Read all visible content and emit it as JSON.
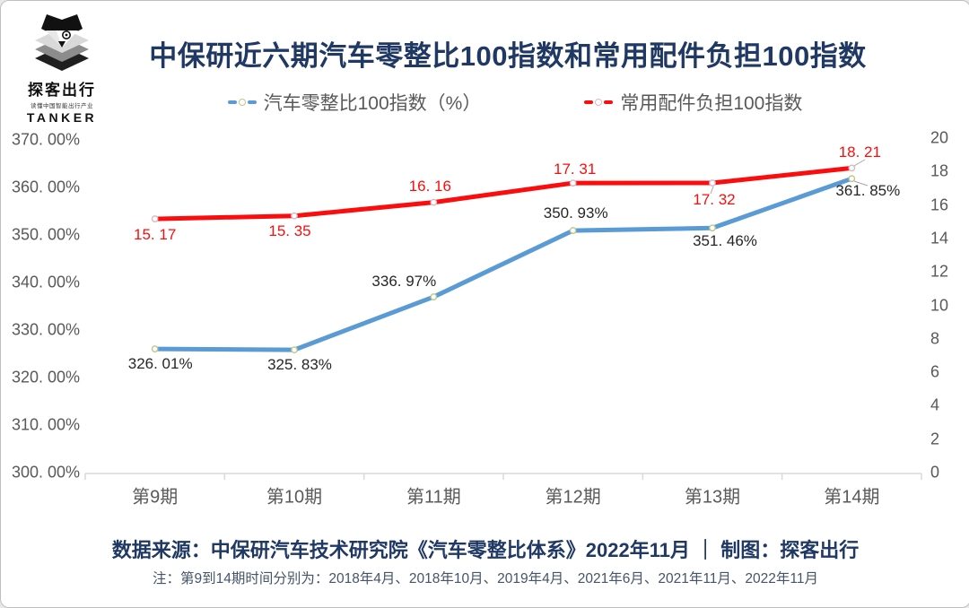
{
  "logo": {
    "brand_cn": "探客出行",
    "tagline": "读懂中国智能出行产业",
    "brand_en": "TANKER",
    "icon": "detective-layers-icon"
  },
  "title": "中保研近六期汽车零整比100指数和常用配件负担100指数",
  "legend": [
    {
      "label": "汽车零整比100指数（%）",
      "color": "#5b9bd5",
      "marker_ring": "#b9c98c"
    },
    {
      "label": "常用配件负担100指数",
      "color": "#fb0d0d",
      "marker_ring": "#d9b8c4"
    }
  ],
  "chart_data": {
    "type": "line",
    "title": "中保研近六期汽车零整比100指数和常用配件负担100指数",
    "categories": [
      "第9期",
      "第10期",
      "第11期",
      "第12期",
      "第13期",
      "第14期"
    ],
    "series": [
      {
        "name": "汽车零整比100指数（%）",
        "axis": "left",
        "color": "#5b9bd5",
        "label_color": "#262626",
        "marker_ring": "#b9c98c",
        "values": [
          326.01,
          325.83,
          336.97,
          350.93,
          351.46,
          361.85
        ],
        "labels": [
          "326. 01%",
          "325. 83%",
          "336. 97%",
          "350. 93%",
          "351. 46%",
          "361. 85%"
        ]
      },
      {
        "name": "常用配件负担100指数",
        "axis": "right",
        "color": "#fb0d0d",
        "label_color": "#fb0d0d",
        "marker_ring": "#d9b8c4",
        "values": [
          15.17,
          15.35,
          16.16,
          17.31,
          17.32,
          18.21
        ],
        "labels": [
          "15. 17",
          "15. 35",
          "16. 16",
          "17. 31",
          "17. 32",
          "18. 21"
        ]
      }
    ],
    "left_axis": {
      "min": 300,
      "max": 370,
      "ticks": [
        "370. 00%",
        "360. 00%",
        "350. 00%",
        "340. 00%",
        "330. 00%",
        "320. 00%",
        "310. 00%",
        "300. 00%"
      ]
    },
    "right_axis": {
      "min": 0,
      "max": 20,
      "ticks": [
        "20",
        "18",
        "16",
        "14",
        "12",
        "10",
        "8",
        "6",
        "4",
        "2",
        "0"
      ]
    },
    "xlabel": "",
    "ylabel": "",
    "grid": false,
    "legend_position": "top"
  },
  "footer": {
    "source": "数据来源：中保研汽车技术研究院《汽车零整比体系》2022年11月 ｜ 制图：探客出行",
    "note": "注：第9到14期时间分别为：2018年4月、2018年10月、2019年4月、2021年6月、2021年11月、2022年11月"
  }
}
